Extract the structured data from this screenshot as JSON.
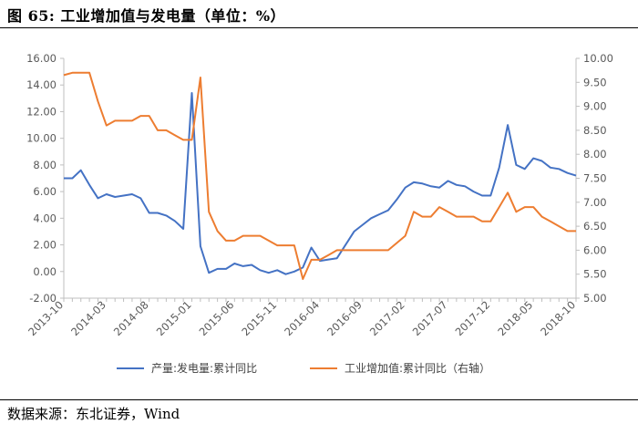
{
  "figure": {
    "title": "图 65:  工业增加值与发电量（单位：%）",
    "source": "数据来源：东北证券，Wind"
  },
  "chart_data": {
    "type": "line",
    "title": "",
    "x": [
      "2013-10",
      "2013-11",
      "2013-12",
      "2014-01",
      "2014-02",
      "2014-03",
      "2014-04",
      "2014-05",
      "2014-06",
      "2014-07",
      "2014-08",
      "2014-09",
      "2014-10",
      "2014-11",
      "2014-12",
      "2015-01",
      "2015-02",
      "2015-03",
      "2015-04",
      "2015-05",
      "2015-06",
      "2015-07",
      "2015-08",
      "2015-09",
      "2015-10",
      "2015-11",
      "2015-12",
      "2016-01",
      "2016-02",
      "2016-03",
      "2016-04",
      "2016-05",
      "2016-06",
      "2016-07",
      "2016-08",
      "2016-09",
      "2016-10",
      "2016-11",
      "2016-12",
      "2017-01",
      "2017-02",
      "2017-03",
      "2017-04",
      "2017-05",
      "2017-06",
      "2017-07",
      "2017-08",
      "2017-09",
      "2017-10",
      "2017-11",
      "2017-12",
      "2018-01",
      "2018-02",
      "2018-03",
      "2018-04",
      "2018-05",
      "2018-06",
      "2018-07",
      "2018-08",
      "2018-09",
      "2018-10"
    ],
    "x_tick_labels": [
      "2013-10",
      "2014-03",
      "2014-08",
      "2015-01",
      "2015-06",
      "2015-11",
      "2016-04",
      "2016-09",
      "2017-02",
      "2017-07",
      "2017-12",
      "2018-05",
      "2018-10"
    ],
    "x_tick_every": 5,
    "y_left": {
      "range": [
        -2.0,
        16.0
      ],
      "step": 2.0,
      "tick_labels": [
        "-2.00",
        "0.00",
        "2.00",
        "4.00",
        "6.00",
        "8.00",
        "10.00",
        "12.00",
        "14.00",
        "16.00"
      ]
    },
    "y_right": {
      "range": [
        5.0,
        10.0
      ],
      "step": 0.5,
      "tick_labels": [
        "5.00",
        "5.50",
        "6.00",
        "6.50",
        "7.00",
        "7.50",
        "8.00",
        "8.50",
        "9.00",
        "9.50",
        "10.00"
      ]
    },
    "grid": false,
    "legend_position": "bottom",
    "series": [
      {
        "name": "产量:发电量:累计同比",
        "axis": "left",
        "color": "#4472C4",
        "values": [
          7.0,
          7.0,
          7.6,
          6.5,
          5.5,
          5.8,
          5.6,
          5.7,
          5.8,
          5.5,
          4.4,
          4.4,
          4.2,
          3.8,
          3.2,
          13.4,
          1.9,
          -0.1,
          0.2,
          0.2,
          0.6,
          0.4,
          0.5,
          0.1,
          -0.1,
          0.1,
          -0.2,
          0.0,
          0.3,
          1.8,
          0.8,
          0.9,
          1.0,
          2.0,
          3.0,
          3.5,
          4.0,
          4.3,
          4.6,
          5.4,
          6.3,
          6.7,
          6.6,
          6.4,
          6.3,
          6.8,
          6.5,
          6.4,
          6.0,
          5.7,
          5.7,
          7.8,
          11.0,
          8.0,
          7.7,
          8.5,
          8.3,
          7.8,
          7.7,
          7.4,
          7.2
        ]
      },
      {
        "name": "工业增加值:累计同比（右轴）",
        "axis": "right",
        "color": "#ED7D31",
        "values": [
          9.65,
          9.7,
          9.7,
          9.7,
          9.1,
          8.6,
          8.7,
          8.7,
          8.7,
          8.8,
          8.8,
          8.5,
          8.5,
          8.4,
          8.3,
          8.3,
          9.6,
          6.8,
          6.4,
          6.2,
          6.2,
          6.3,
          6.3,
          6.3,
          6.2,
          6.1,
          6.1,
          6.1,
          5.4,
          5.8,
          5.8,
          5.9,
          6.0,
          6.0,
          6.0,
          6.0,
          6.0,
          6.0,
          6.0,
          6.15,
          6.3,
          6.8,
          6.7,
          6.7,
          6.9,
          6.8,
          6.7,
          6.7,
          6.7,
          6.6,
          6.6,
          6.9,
          7.2,
          6.8,
          6.9,
          6.9,
          6.7,
          6.6,
          6.5,
          6.4,
          6.4
        ]
      }
    ]
  }
}
